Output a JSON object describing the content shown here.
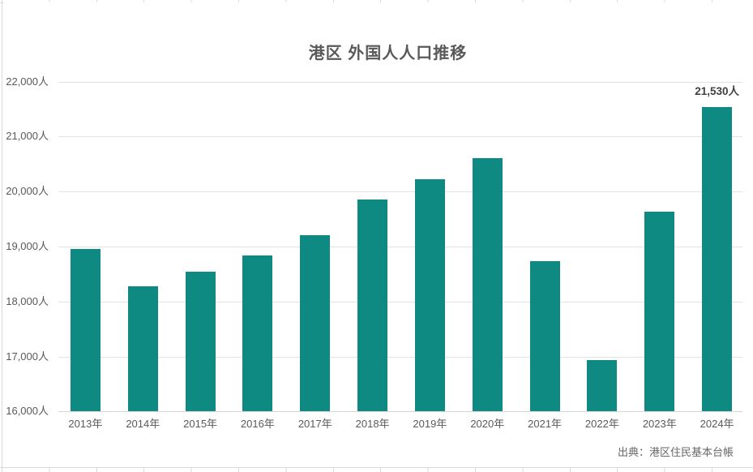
{
  "chart_data": {
    "type": "bar",
    "title": "港区 外国人人口推移",
    "categories": [
      "2013年",
      "2014年",
      "2015年",
      "2016年",
      "2017年",
      "2018年",
      "2019年",
      "2020年",
      "2021年",
      "2022年",
      "2023年",
      "2024年"
    ],
    "values": [
      18960,
      18280,
      18540,
      18840,
      19200,
      19860,
      20230,
      20600,
      18740,
      16940,
      19630,
      21530
    ],
    "xlabel": "",
    "ylabel": "",
    "ylim": [
      16000,
      22000
    ],
    "ytick_step": 1000,
    "ytick_labels": [
      "16,000人",
      "17,000人",
      "18,000人",
      "19,000人",
      "20,000人",
      "21,000人",
      "22,000人"
    ],
    "data_labels": {
      "2024年": "21,530人"
    },
    "grid": true,
    "legend": false,
    "source": "出典：港区住民基本台帳"
  },
  "colors": {
    "bar": "#0e8a83",
    "title_text": "#595959",
    "axis_text": "#595959",
    "data_label_text": "#404040",
    "gridline": "#e2e2e2",
    "sheet_line": "#d9d9d9",
    "source_text": "#666666"
  }
}
